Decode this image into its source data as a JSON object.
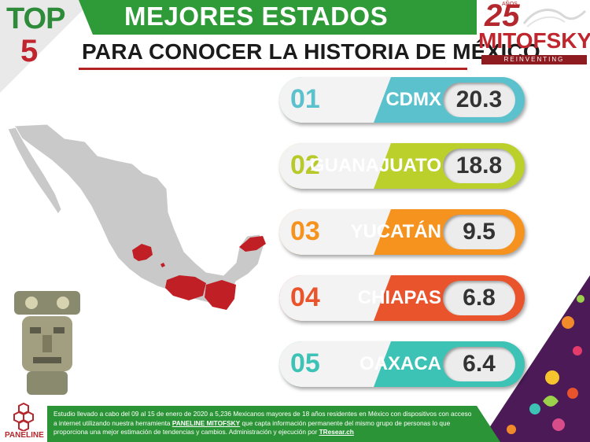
{
  "header": {
    "top_label": "TOP",
    "top_number": "5",
    "title_line1": "MEJORES ESTADOS",
    "title_line2": "PARA CONOCER LA HISTORIA DE MÉXICO"
  },
  "logo": {
    "years": "25",
    "years_label": "AÑOS",
    "brand": "MITOFSKY",
    "tagline": "REINVENTING RESEARCH"
  },
  "chart_data": {
    "type": "bar",
    "categories": [
      "CDMX",
      "GUANAJUATO",
      "YUCATÁN",
      "CHIAPAS",
      "OAXACA"
    ],
    "ranks": [
      "01",
      "02",
      "03",
      "04",
      "05"
    ],
    "values": [
      20.3,
      18.8,
      9.5,
      6.8,
      6.4
    ],
    "value_labels": [
      "20.3",
      "18.8",
      "9.5",
      "6.8",
      "6.4"
    ],
    "colors": [
      "#5bc2cd",
      "#bcd02c",
      "#f5931e",
      "#e9542d",
      "#3cc3b5"
    ],
    "rank_colors": [
      "#5bc2cd",
      "#b8c92a",
      "#f5931e",
      "#e9542d",
      "#3cc3b5"
    ]
  },
  "footer": {
    "text_part1": "Estudio llevado a cabo del 09 al 15 de enero de 2020 a 5,236 Mexicanos mayores de 18 años residentes en México con dispositivos con acceso a internet utilizando nuestra herramienta ",
    "tool_name": "PANELINE MITOFSKY",
    "text_part2": " que capta información permanente del mismo grupo de personas lo que proporciona una mejor estimación de tendencias y cambios. Administración y ejecución por ",
    "executor": "TResear.ch"
  },
  "paneline": {
    "label": "PANELINE"
  }
}
